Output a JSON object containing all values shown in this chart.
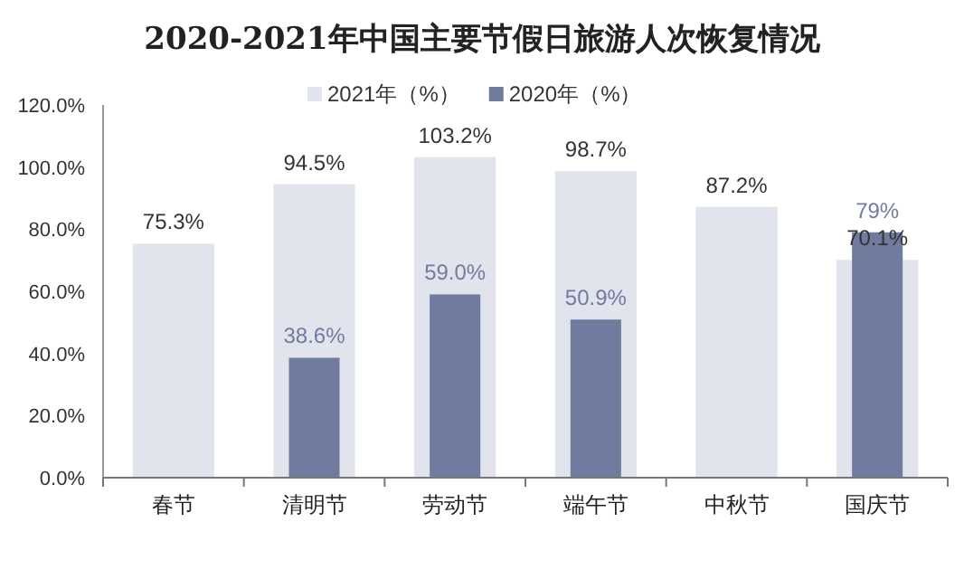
{
  "chart_data": {
    "type": "bar",
    "title": "2020-2021年中国主要节假日旅游人次恢复情况",
    "categories": [
      "春节",
      "清明节",
      "劳动节",
      "端午节",
      "中秋节",
      "国庆节"
    ],
    "series": [
      {
        "name": "2021年（%）",
        "color": "#e1e4ec",
        "values": [
          75.3,
          94.5,
          103.2,
          98.7,
          87.2,
          70.1
        ],
        "value_labels": [
          "75.3%",
          "94.5%",
          "103.2%",
          "98.7%",
          "87.2%",
          "70.1%"
        ]
      },
      {
        "name": "2020年（%）",
        "color": "#707ba0",
        "values": [
          null,
          38.6,
          59.0,
          50.9,
          null,
          79
        ],
        "value_labels": [
          null,
          "38.6%",
          "59.0%",
          "50.9%",
          null,
          "79%"
        ]
      }
    ],
    "ylim": [
      0,
      120
    ],
    "yticks": [
      {
        "value": 0,
        "label": "0.0%"
      },
      {
        "value": 20,
        "label": "20.0%"
      },
      {
        "value": 40,
        "label": "40.0%"
      },
      {
        "value": 60,
        "label": "60.0%"
      },
      {
        "value": 80,
        "label": "80.0%"
      },
      {
        "value": 100,
        "label": "100.0%"
      },
      {
        "value": 120,
        "label": "120.0%"
      }
    ],
    "legend": "top"
  }
}
